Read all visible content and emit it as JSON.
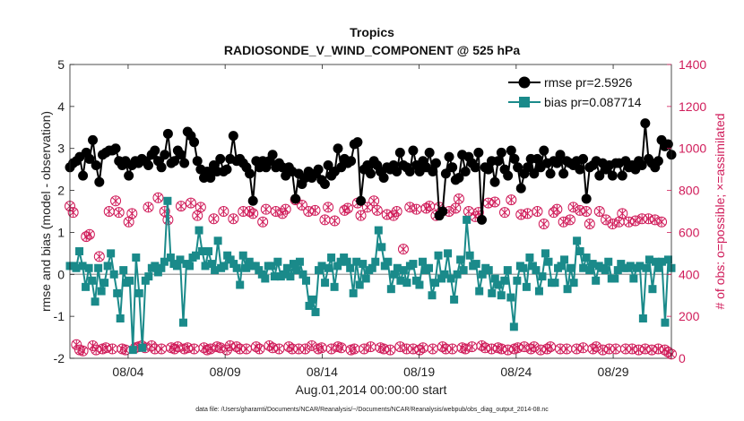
{
  "chart_data": {
    "type": "line",
    "title": "Tropics",
    "subtitle": "RADIOSONDE_V_WIND_COMPONENT @ 525 hPa",
    "xlabel": "Aug.01,2014 00:00:00 start",
    "ylabel": "rmse and bias (model - observation)",
    "y2label": "# of obs: o=possible; ×=assimilated",
    "footer": "data file: /Users/gharamti/Documents/NCAR/Reanalysis/~/Documents/NCAR/Reanalysis/webpub/obs_diag_output_2014-08.nc",
    "x_range": [
      1.0,
      32.0
    ],
    "ylim": [
      -2,
      5
    ],
    "y2lim": [
      0,
      1400
    ],
    "x_ticks": [
      {
        "value": 4,
        "label": "08/04"
      },
      {
        "value": 9,
        "label": "08/09"
      },
      {
        "value": 14,
        "label": "08/14"
      },
      {
        "value": 19,
        "label": "08/19"
      },
      {
        "value": 24,
        "label": "08/24"
      },
      {
        "value": 29,
        "label": "08/29"
      }
    ],
    "y_ticks": [
      -2,
      -1,
      0,
      1,
      2,
      3,
      4,
      5
    ],
    "y2_ticks": [
      0,
      200,
      400,
      600,
      800,
      1000,
      1200,
      1400
    ],
    "legend": {
      "position": "top-right",
      "entries": [
        "rmse pr=2.5926",
        "bias pr=0.087714"
      ]
    },
    "colors": {
      "rmse": "#000000",
      "bias": "#1a8a8a",
      "count": "#d01c5a",
      "zero_line": "#aaaaaa"
    },
    "series": [
      {
        "name": "rmse pr=2.5926",
        "marker": "circle",
        "axis": "left",
        "values": [
          2.55,
          2.65,
          2.7,
          2.8,
          2.35,
          2.9,
          2.75,
          3.2,
          2.6,
          2.2,
          2.85,
          2.9,
          2.95,
          2.95,
          3.0,
          2.7,
          2.6,
          2.7,
          2.35,
          2.6,
          2.7,
          2.65,
          2.75,
          2.7,
          2.6,
          2.85,
          2.95,
          2.7,
          2.55,
          2.85,
          3.35,
          2.65,
          2.7,
          2.95,
          2.85,
          2.65,
          3.4,
          3.3,
          3.15,
          2.7,
          2.5,
          2.3,
          2.45,
          2.3,
          2.6,
          2.45,
          2.75,
          2.45,
          2.5,
          2.75,
          3.3,
          2.7,
          2.75,
          2.65,
          2.55,
          2.4,
          1.75,
          2.7,
          2.55,
          2.7,
          2.55,
          2.7,
          2.85,
          2.55,
          2.65,
          2.55,
          2.35,
          2.55,
          2.45,
          1.8,
          2.4,
          2.15,
          2.3,
          2.45,
          2.3,
          2.4,
          2.5,
          2.25,
          2.15,
          2.6,
          2.35,
          2.45,
          3.0,
          2.55,
          2.75,
          2.65,
          2.7,
          3.1,
          3.15,
          1.75,
          2.5,
          2.6,
          2.4,
          2.7,
          2.6,
          2.45,
          2.3,
          2.55,
          2.5,
          2.6,
          2.45,
          2.9,
          2.6,
          2.55,
          2.45,
          2.95,
          2.6,
          2.45,
          2.7,
          2.55,
          2.9,
          2.45,
          2.65,
          1.4,
          1.5,
          2.4,
          2.8,
          2.55,
          2.25,
          2.3,
          2.85,
          2.45,
          2.8,
          2.65,
          2.55,
          2.9,
          1.3,
          2.55,
          2.5,
          2.7,
          2.2,
          2.7,
          2.9,
          2.5,
          2.35,
          2.95,
          2.75,
          2.55,
          2.05,
          2.4,
          2.55,
          2.75,
          2.4,
          2.75,
          2.55,
          2.95,
          2.65,
          2.4,
          2.7,
          2.65,
          2.85,
          2.4,
          2.7,
          2.65,
          2.6,
          2.7,
          2.5,
          2.75,
          1.8,
          2.55,
          2.6,
          2.7,
          2.35,
          2.65,
          2.5,
          2.6,
          2.35,
          2.65,
          2.65,
          2.35,
          2.7,
          2.55,
          2.6,
          2.5,
          2.7,
          2.6,
          3.6,
          2.75,
          2.65,
          2.55,
          2.7,
          3.2,
          3.05,
          3.1,
          2.85
        ]
      },
      {
        "name": "bias pr=0.087714",
        "marker": "square",
        "axis": "left",
        "values": [
          0.2,
          0.2,
          0.15,
          0.55,
          0.2,
          -0.3,
          0.15,
          -0.15,
          -0.65,
          0.15,
          -0.4,
          -0.2,
          0.2,
          0.5,
          0.0,
          -0.45,
          -1.05,
          0.1,
          -0.2,
          -0.15,
          -1.8,
          0.4,
          -0.45,
          -1.75,
          -0.15,
          -0.05,
          0.15,
          0.2,
          0.05,
          0.15,
          0.3,
          1.75,
          0.4,
          0.25,
          0.2,
          0.35,
          -1.15,
          0.25,
          0.2,
          0.4,
          0.45,
          1.05,
          0.55,
          0.2,
          0.55,
          0.25,
          0.1,
          0.8,
          0.15,
          0.2,
          0.45,
          0.35,
          0.25,
          0.15,
          -0.25,
          0.45,
          0.15,
          0.3,
          0.2,
          0.2,
          0.1,
          0.0,
          -0.1,
          0.2,
          0.2,
          -0.05,
          0.3,
          -0.05,
          0.0,
          0.15,
          -0.05,
          0.25,
          0.1,
          0.3,
          0.0,
          -0.15,
          -0.75,
          -0.6,
          -0.9,
          0.1,
          0.2,
          -0.2,
          0.15,
          0.4,
          -0.3,
          0.2,
          0.3,
          0.4,
          0.3,
          0.15,
          -0.45,
          0.3,
          -0.25,
          0.25,
          -0.1,
          0.1,
          0.15,
          0.3,
          1.05,
          0.65,
          0.2,
          0.3,
          -0.35,
          0.0,
          0.15,
          -0.15,
          0.1,
          -0.2,
          0.2,
          0.25,
          -0.15,
          -0.25,
          0.3,
          0.1,
          0.15,
          -0.5,
          -0.2,
          0.45,
          -0.1,
          0.0,
          0.5,
          -0.1,
          -0.6,
          0.0,
          0.35,
          0.1,
          1.3,
          0.45,
          0.2,
          0.25,
          -0.4,
          0.0,
          0.15,
          0.1,
          -0.45,
          -0.1,
          -0.25,
          -0.5,
          -0.15,
          0.1,
          -0.55,
          -1.25,
          -0.15,
          0.2,
          0.15,
          -0.3,
          0.4,
          0.2,
          0.1,
          -0.4,
          -0.05,
          0.5,
          0.3,
          -0.2,
          -0.2,
          0.15,
          0.2,
          0.35,
          -0.35,
          0.15,
          -0.2,
          0.8,
          0.55,
          0.15,
          0.4,
          0.1,
          0.25,
          -0.15,
          0.2,
          0.15,
          0.1,
          0.3,
          -0.1,
          -0.1,
          0.1,
          0.25,
          0.15,
          0.15,
          0.2,
          -0.1,
          0.15,
          0.2,
          -1.05,
          0.15,
          0.35,
          -0.35,
          0.3,
          0.15,
          0.3,
          -1.15,
          0.35,
          0.15
        ]
      },
      {
        "name": "possible obs",
        "marker": "circle-open",
        "axis": "right",
        "values": [
          725,
          695,
          65,
          40,
          35,
          580,
          590,
          60,
          40,
          485,
          45,
          50,
          700,
          45,
          750,
          695,
          45,
          40,
          650,
          690,
          50,
          55,
          60,
          50,
          720,
          60,
          45,
          765,
          45,
          700,
          660,
          50,
          45,
          55,
          725,
          45,
          50,
          740,
          45,
          680,
          720,
          50,
          40,
          45,
          665,
          55,
          50,
          700,
          40,
          60,
          665,
          55,
          45,
          700,
          45,
          700,
          690,
          55,
          45,
          650,
          710,
          60,
          50,
          700,
          45,
          690,
          710,
          55,
          45,
          755,
          45,
          730,
          45,
          700,
          60,
          705,
          45,
          50,
          660,
          720,
          45,
          655,
          55,
          50,
          705,
          715,
          40,
          45,
          740,
          680,
          45,
          720,
          55,
          750,
          705,
          50,
          45,
          685,
          40,
          680,
          700,
          55,
          520,
          45,
          720,
          45,
          710,
          40,
          50,
          715,
          725,
          45,
          680,
          720,
          55,
          45,
          700,
          45,
          715,
          760,
          50,
          45,
          700,
          55,
          675,
          695,
          60,
          50,
          740,
          45,
          745,
          50,
          45,
          695,
          40,
          755,
          45,
          50,
          685,
          55,
          690,
          45,
          55,
          700,
          40,
          640,
          45,
          55,
          695,
          710,
          45,
          650,
          45,
          660,
          720,
          45,
          705,
          50,
          700,
          640,
          45,
          55,
          700,
          40,
          660,
          45,
          640,
          45,
          650,
          690,
          45,
          650,
          45,
          655,
          40,
          665,
          45,
          665,
          40,
          660,
          45,
          650,
          40,
          30,
          20
        ]
      },
      {
        "name": "assimilated obs",
        "marker": "cross",
        "axis": "right",
        "values": [
          725,
          695,
          65,
          40,
          35,
          580,
          590,
          60,
          40,
          485,
          45,
          50,
          700,
          45,
          750,
          695,
          45,
          40,
          650,
          690,
          50,
          55,
          60,
          50,
          720,
          60,
          45,
          765,
          45,
          700,
          660,
          50,
          45,
          55,
          725,
          45,
          50,
          740,
          45,
          680,
          720,
          50,
          40,
          45,
          665,
          55,
          50,
          700,
          40,
          60,
          665,
          55,
          45,
          700,
          45,
          700,
          690,
          55,
          45,
          650,
          710,
          60,
          50,
          700,
          45,
          690,
          710,
          55,
          45,
          755,
          45,
          730,
          45,
          700,
          60,
          705,
          45,
          50,
          660,
          720,
          45,
          655,
          55,
          50,
          705,
          715,
          40,
          45,
          740,
          680,
          45,
          720,
          55,
          750,
          705,
          50,
          45,
          685,
          40,
          680,
          700,
          55,
          520,
          45,
          720,
          45,
          710,
          40,
          50,
          715,
          725,
          45,
          680,
          720,
          55,
          45,
          700,
          45,
          715,
          760,
          50,
          45,
          700,
          55,
          675,
          695,
          60,
          50,
          740,
          45,
          745,
          50,
          45,
          695,
          40,
          755,
          45,
          50,
          685,
          55,
          690,
          45,
          55,
          700,
          40,
          640,
          45,
          55,
          695,
          710,
          45,
          650,
          45,
          660,
          720,
          45,
          705,
          50,
          700,
          640,
          45,
          55,
          700,
          40,
          660,
          45,
          640,
          45,
          650,
          690,
          45,
          650,
          45,
          655,
          40,
          665,
          45,
          665,
          40,
          660,
          45,
          650,
          40,
          30,
          20
        ]
      }
    ]
  }
}
